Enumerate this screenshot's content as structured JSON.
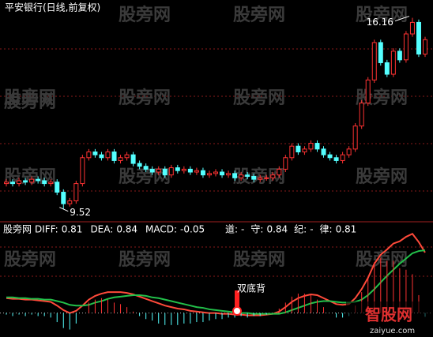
{
  "watermark": "股旁网",
  "logo": {
    "text": "智股网",
    "url": "zaiyue.com"
  },
  "chart_data": [
    {
      "type": "candlestick",
      "title": "平安银行(日线,前复权)",
      "up_color": "#ff3232",
      "down_color": "#54ffff",
      "ylim": [
        9.1,
        16.45
      ],
      "open": [
        10.4,
        10.45,
        10.4,
        10.5,
        10.45,
        10.55,
        10.5,
        10.4,
        10.45,
        10.1,
        9.7,
        9.8,
        10.4,
        11.3,
        11.5,
        11.4,
        11.3,
        11.5,
        11.2,
        11.3,
        11.4,
        11.1,
        11.0,
        10.9,
        10.8,
        10.9,
        10.7,
        10.95,
        10.85,
        10.9,
        10.8,
        10.85,
        10.7,
        10.75,
        10.8,
        10.7,
        10.75,
        10.6,
        10.7,
        10.65,
        10.55,
        10.6,
        10.6,
        10.7,
        10.9,
        11.3,
        11.7,
        11.5,
        11.6,
        11.8,
        11.6,
        11.4,
        11.3,
        11.2,
        11.4,
        11.6,
        12.4,
        13.2,
        14.0,
        15.3,
        14.6,
        14.2,
        15.0,
        14.7,
        15.6,
        16.0,
        14.9
      ],
      "high": [
        10.55,
        10.55,
        10.6,
        10.6,
        10.65,
        10.65,
        10.6,
        10.55,
        10.55,
        10.2,
        9.9,
        10.5,
        11.4,
        11.6,
        11.6,
        11.5,
        11.6,
        11.6,
        11.4,
        11.5,
        11.5,
        11.2,
        11.1,
        11.0,
        11.0,
        11.0,
        11.05,
        11.05,
        11.0,
        11.0,
        10.95,
        10.95,
        10.85,
        10.9,
        10.9,
        10.85,
        10.85,
        10.8,
        10.8,
        10.75,
        10.7,
        10.7,
        10.8,
        11.0,
        11.4,
        11.8,
        11.8,
        11.7,
        11.9,
        11.9,
        11.7,
        11.5,
        11.4,
        11.5,
        11.7,
        12.5,
        13.3,
        14.1,
        15.4,
        15.4,
        14.7,
        15.1,
        15.1,
        15.7,
        16.16,
        16.1,
        15.5
      ],
      "low": [
        10.3,
        10.3,
        10.3,
        10.35,
        10.35,
        10.4,
        10.3,
        10.3,
        10.0,
        9.52,
        9.6,
        9.7,
        10.3,
        11.2,
        11.3,
        11.2,
        11.2,
        11.1,
        11.1,
        11.2,
        11.0,
        10.9,
        10.8,
        10.7,
        10.7,
        10.6,
        10.6,
        10.75,
        10.75,
        10.7,
        10.7,
        10.6,
        10.6,
        10.65,
        10.6,
        10.6,
        10.5,
        10.5,
        10.55,
        10.45,
        10.45,
        10.5,
        10.5,
        10.6,
        10.8,
        11.2,
        11.4,
        11.4,
        11.5,
        11.5,
        11.3,
        11.2,
        11.1,
        11.1,
        11.3,
        11.5,
        12.3,
        13.1,
        13.9,
        14.5,
        14.1,
        14.1,
        14.6,
        14.6,
        15.5,
        14.8,
        14.8
      ],
      "close": [
        10.45,
        10.4,
        10.5,
        10.45,
        10.55,
        10.5,
        10.4,
        10.45,
        10.1,
        9.7,
        9.8,
        10.4,
        11.3,
        11.5,
        11.4,
        11.3,
        11.5,
        11.2,
        11.3,
        11.4,
        11.1,
        11.0,
        10.9,
        10.8,
        10.9,
        10.7,
        10.95,
        10.85,
        10.9,
        10.8,
        10.85,
        10.7,
        10.75,
        10.8,
        10.7,
        10.75,
        10.6,
        10.7,
        10.65,
        10.55,
        10.6,
        10.6,
        10.7,
        10.9,
        11.3,
        11.7,
        11.5,
        11.6,
        11.8,
        11.6,
        11.4,
        11.3,
        11.2,
        11.4,
        11.6,
        12.4,
        13.2,
        14.0,
        15.3,
        14.6,
        14.2,
        15.0,
        14.7,
        15.6,
        16.0,
        14.9,
        15.4
      ]
    },
    {
      "type": "line",
      "legend_title": "股旁网",
      "annotation": "双底背",
      "ylim": [
        -0.32,
        1.2
      ],
      "series": [
        {
          "name": "DIFF:",
          "type": "line",
          "color": "#ff4a3a",
          "values": [
            0.2,
            0.19,
            0.19,
            0.18,
            0.18,
            0.17,
            0.16,
            0.15,
            0.1,
            0.04,
            0.0,
            0.03,
            0.1,
            0.18,
            0.23,
            0.26,
            0.28,
            0.28,
            0.28,
            0.27,
            0.25,
            0.22,
            0.19,
            0.16,
            0.13,
            0.1,
            0.08,
            0.06,
            0.05,
            0.03,
            0.02,
            0.01,
            0.0,
            0.0,
            -0.01,
            -0.01,
            -0.02,
            -0.02,
            -0.03,
            -0.03,
            -0.03,
            -0.02,
            -0.01,
            0.02,
            0.08,
            0.15,
            0.2,
            0.23,
            0.25,
            0.24,
            0.2,
            0.16,
            0.12,
            0.11,
            0.12,
            0.2,
            0.32,
            0.47,
            0.66,
            0.78,
            0.85,
            0.93,
            0.96,
            1.02,
            1.06,
            0.95,
            0.81
          ]
        },
        {
          "name": "DEA:",
          "type": "line",
          "color": "#22c04a",
          "values": [
            0.21,
            0.21,
            0.2,
            0.2,
            0.19,
            0.19,
            0.18,
            0.18,
            0.16,
            0.14,
            0.11,
            0.1,
            0.1,
            0.11,
            0.14,
            0.16,
            0.19,
            0.21,
            0.22,
            0.23,
            0.24,
            0.24,
            0.23,
            0.21,
            0.2,
            0.18,
            0.16,
            0.14,
            0.12,
            0.1,
            0.08,
            0.07,
            0.05,
            0.04,
            0.03,
            0.02,
            0.01,
            0.0,
            0.0,
            -0.01,
            -0.01,
            -0.01,
            -0.01,
            -0.01,
            0.01,
            0.04,
            0.07,
            0.1,
            0.13,
            0.15,
            0.16,
            0.16,
            0.15,
            0.14,
            0.14,
            0.15,
            0.18,
            0.24,
            0.32,
            0.41,
            0.5,
            0.58,
            0.66,
            0.73,
            0.8,
            0.83,
            0.84
          ]
        },
        {
          "name": "MACD:",
          "type": "bar",
          "color": "#ff3232",
          "neg_color": "#54ffff",
          "values": [
            -0.02,
            -0.04,
            -0.02,
            -0.04,
            -0.02,
            -0.04,
            -0.04,
            -0.06,
            -0.12,
            -0.2,
            -0.22,
            -0.14,
            0.0,
            0.14,
            0.18,
            0.2,
            0.18,
            0.14,
            0.12,
            0.08,
            0.02,
            -0.04,
            -0.08,
            -0.1,
            -0.14,
            -0.16,
            -0.16,
            -0.16,
            -0.14,
            -0.14,
            -0.12,
            -0.12,
            -0.1,
            -0.08,
            -0.08,
            -0.06,
            -0.06,
            -0.04,
            -0.06,
            -0.04,
            -0.04,
            -0.02,
            0.0,
            0.06,
            0.14,
            0.22,
            0.26,
            0.26,
            0.24,
            0.18,
            0.08,
            0.0,
            -0.06,
            -0.06,
            -0.04,
            0.1,
            0.28,
            0.46,
            0.68,
            0.74,
            0.7,
            0.7,
            0.6,
            0.58,
            0.52,
            0.24,
            -0.05
          ]
        }
      ],
      "indicators": [
        {
          "label": "道:",
          "value": "-",
          "color": "#ff3232"
        },
        {
          "label": "守:",
          "value": 0.84,
          "color": "#3a8cff"
        },
        {
          "label": "纪:",
          "value": "-",
          "color": "#ffffff"
        },
        {
          "label": "律:",
          "value": 0.81,
          "color": "#22d04a"
        }
      ]
    }
  ]
}
